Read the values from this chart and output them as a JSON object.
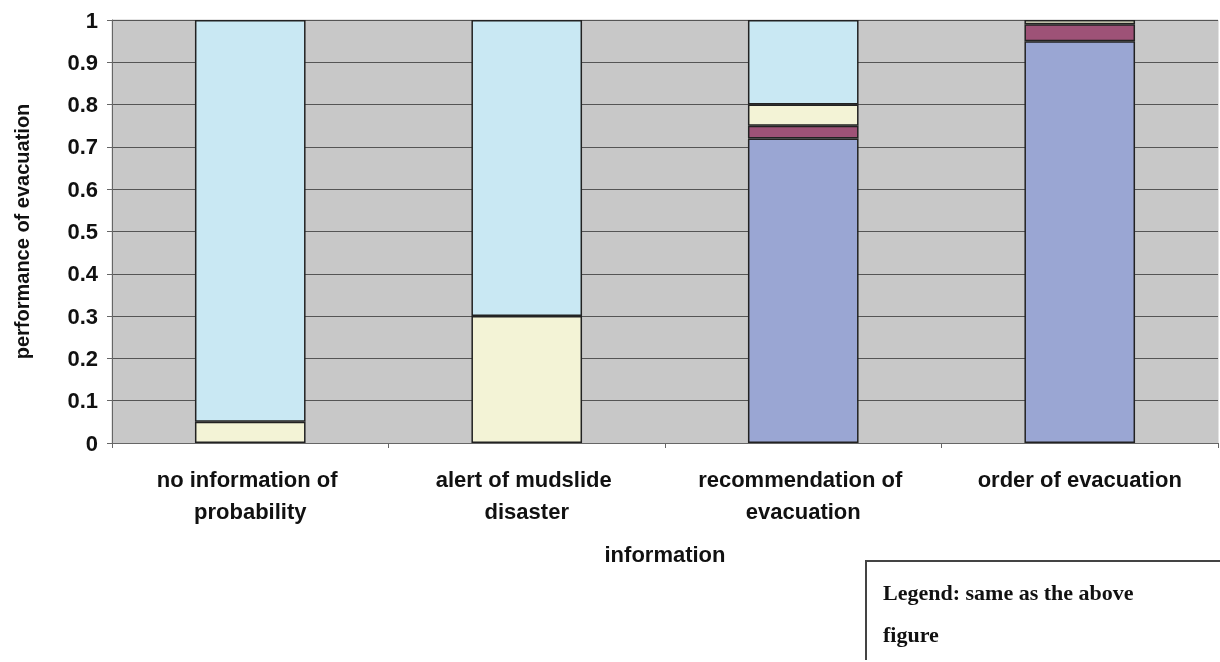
{
  "chart_data": {
    "type": "bar",
    "stacked": true,
    "categories": [
      "no information of probability",
      "alert of mudslide disaster",
      "recommendation of evacuation",
      "order of evacuation"
    ],
    "series": [
      {
        "color": "#9aa6d3",
        "values": [
          0,
          0,
          0.72,
          0.95
        ]
      },
      {
        "color": "#9e5277",
        "values": [
          0,
          0,
          0.03,
          0.04
        ]
      },
      {
        "color": "#f3f3d6",
        "values": [
          0.05,
          0.3,
          0.05,
          0.01
        ]
      },
      {
        "color": "#c9e8f3",
        "values": [
          0.95,
          0.7,
          0.2,
          0
        ]
      }
    ],
    "xlabel": "information",
    "ylabel": "performance of evacuation",
    "ylim": [
      0,
      1
    ],
    "yticks": [
      0,
      0.1,
      0.2,
      0.3,
      0.4,
      0.5,
      0.6,
      0.7,
      0.8,
      0.9,
      1
    ],
    "grid": "y",
    "annotations": [
      "Legend: same as the above figure"
    ]
  }
}
